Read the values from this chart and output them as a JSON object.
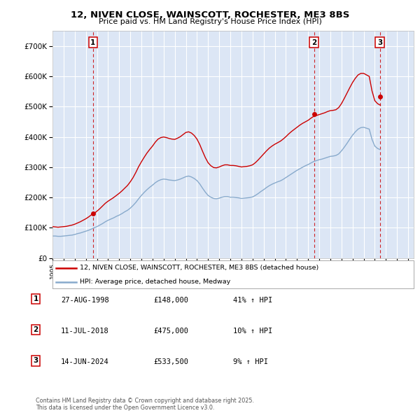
{
  "title": "12, NIVEN CLOSE, WAINSCOTT, ROCHESTER, ME3 8BS",
  "subtitle": "Price paid vs. HM Land Registry's House Price Index (HPI)",
  "background_color": "#ffffff",
  "plot_bg_color": "#dce6f5",
  "grid_color": "#ffffff",
  "sale_prices": [
    148000,
    475000,
    533500
  ],
  "sale_labels": [
    "1",
    "2",
    "3"
  ],
  "sale_date_years": [
    1998.647,
    2018.528,
    2024.456
  ],
  "sale_label_details": [
    {
      "num": "1",
      "date": "27-AUG-1998",
      "price": "£148,000",
      "hpi": "41% ↑ HPI"
    },
    {
      "num": "2",
      "date": "11-JUL-2018",
      "price": "£475,000",
      "hpi": "10% ↑ HPI"
    },
    {
      "num": "3",
      "date": "14-JUN-2024",
      "price": "£533,500",
      "hpi": "9% ↑ HPI"
    }
  ],
  "legend_labels": [
    "12, NIVEN CLOSE, WAINSCOTT, ROCHESTER, ME3 8BS (detached house)",
    "HPI: Average price, detached house, Medway"
  ],
  "line_color_red": "#cc0000",
  "line_color_blue": "#88aacc",
  "vline_color": "#cc0000",
  "footer": "Contains HM Land Registry data © Crown copyright and database right 2025.\nThis data is licensed under the Open Government Licence v3.0.",
  "ylim": [
    0,
    750000
  ],
  "yticks": [
    0,
    100000,
    200000,
    300000,
    400000,
    500000,
    600000,
    700000
  ],
  "ytick_labels": [
    "£0",
    "£100K",
    "£200K",
    "£300K",
    "£400K",
    "£500K",
    "£600K",
    "£700K"
  ],
  "xlim_start": 1995.0,
  "xlim_end": 2027.5,
  "hpi_red_data": {
    "years": [
      1995.0,
      1995.25,
      1995.5,
      1995.75,
      1996.0,
      1996.25,
      1996.5,
      1996.75,
      1997.0,
      1997.25,
      1997.5,
      1997.75,
      1998.0,
      1998.25,
      1998.5,
      1998.75,
      1999.0,
      1999.25,
      1999.5,
      1999.75,
      2000.0,
      2000.25,
      2000.5,
      2000.75,
      2001.0,
      2001.25,
      2001.5,
      2001.75,
      2002.0,
      2002.25,
      2002.5,
      2002.75,
      2003.0,
      2003.25,
      2003.5,
      2003.75,
      2004.0,
      2004.25,
      2004.5,
      2004.75,
      2005.0,
      2005.25,
      2005.5,
      2005.75,
      2006.0,
      2006.25,
      2006.5,
      2006.75,
      2007.0,
      2007.25,
      2007.5,
      2007.75,
      2008.0,
      2008.25,
      2008.5,
      2008.75,
      2009.0,
      2009.25,
      2009.5,
      2009.75,
      2010.0,
      2010.25,
      2010.5,
      2010.75,
      2011.0,
      2011.25,
      2011.5,
      2011.75,
      2012.0,
      2012.25,
      2012.5,
      2012.75,
      2013.0,
      2013.25,
      2013.5,
      2013.75,
      2014.0,
      2014.25,
      2014.5,
      2014.75,
      2015.0,
      2015.25,
      2015.5,
      2015.75,
      2016.0,
      2016.25,
      2016.5,
      2016.75,
      2017.0,
      2017.25,
      2017.5,
      2017.75,
      2018.0,
      2018.25,
      2018.5,
      2018.75,
      2019.0,
      2019.25,
      2019.5,
      2019.75,
      2020.0,
      2020.25,
      2020.5,
      2020.75,
      2021.0,
      2021.25,
      2021.5,
      2021.75,
      2022.0,
      2022.25,
      2022.5,
      2022.75,
      2023.0,
      2023.25,
      2023.5,
      2023.75,
      2024.0,
      2024.25,
      2024.5
    ],
    "values": [
      104000,
      103000,
      102000,
      103000,
      104000,
      105000,
      107000,
      109000,
      112000,
      116000,
      120000,
      125000,
      130000,
      136000,
      143000,
      148000,
      155000,
      163000,
      172000,
      181000,
      188000,
      194000,
      200000,
      207000,
      214000,
      222000,
      231000,
      240000,
      252000,
      266000,
      283000,
      302000,
      318000,
      333000,
      347000,
      359000,
      370000,
      383000,
      393000,
      398000,
      400000,
      398000,
      395000,
      393000,
      392000,
      396000,
      401000,
      408000,
      415000,
      417000,
      413000,
      405000,
      393000,
      375000,
      353000,
      332000,
      315000,
      305000,
      299000,
      298000,
      301000,
      305000,
      308000,
      308000,
      306000,
      306000,
      305000,
      303000,
      301000,
      302000,
      303000,
      305000,
      308000,
      315000,
      324000,
      334000,
      344000,
      354000,
      363000,
      370000,
      376000,
      381000,
      386000,
      393000,
      401000,
      410000,
      418000,
      425000,
      432000,
      439000,
      445000,
      450000,
      455000,
      462000,
      468000,
      471000,
      474000,
      477000,
      480000,
      484000,
      487000,
      488000,
      490000,
      497000,
      510000,
      527000,
      545000,
      563000,
      580000,
      594000,
      605000,
      610000,
      610000,
      605000,
      600000,
      552000,
      520000,
      510000,
      505000
    ]
  },
  "hpi_blue_data": {
    "years": [
      1995.0,
      1995.25,
      1995.5,
      1995.75,
      1996.0,
      1996.25,
      1996.5,
      1996.75,
      1997.0,
      1997.25,
      1997.5,
      1997.75,
      1998.0,
      1998.25,
      1998.5,
      1998.75,
      1999.0,
      1999.25,
      1999.5,
      1999.75,
      2000.0,
      2000.25,
      2000.5,
      2000.75,
      2001.0,
      2001.25,
      2001.5,
      2001.75,
      2002.0,
      2002.25,
      2002.5,
      2002.75,
      2003.0,
      2003.25,
      2003.5,
      2003.75,
      2004.0,
      2004.25,
      2004.5,
      2004.75,
      2005.0,
      2005.25,
      2005.5,
      2005.75,
      2006.0,
      2006.25,
      2006.5,
      2006.75,
      2007.0,
      2007.25,
      2007.5,
      2007.75,
      2008.0,
      2008.25,
      2008.5,
      2008.75,
      2009.0,
      2009.25,
      2009.5,
      2009.75,
      2010.0,
      2010.25,
      2010.5,
      2010.75,
      2011.0,
      2011.25,
      2011.5,
      2011.75,
      2012.0,
      2012.25,
      2012.5,
      2012.75,
      2013.0,
      2013.25,
      2013.5,
      2013.75,
      2014.0,
      2014.25,
      2014.5,
      2014.75,
      2015.0,
      2015.25,
      2015.5,
      2015.75,
      2016.0,
      2016.25,
      2016.5,
      2016.75,
      2017.0,
      2017.25,
      2017.5,
      2017.75,
      2018.0,
      2018.25,
      2018.5,
      2018.75,
      2019.0,
      2019.25,
      2019.5,
      2019.75,
      2020.0,
      2020.25,
      2020.5,
      2020.75,
      2021.0,
      2021.25,
      2021.5,
      2021.75,
      2022.0,
      2022.25,
      2022.5,
      2022.75,
      2023.0,
      2023.25,
      2023.5,
      2023.75,
      2024.0,
      2024.25,
      2024.5
    ],
    "values": [
      73000,
      73000,
      72000,
      72000,
      73000,
      74000,
      75000,
      76000,
      78000,
      81000,
      83000,
      86000,
      89000,
      92000,
      96000,
      100000,
      104000,
      109000,
      114000,
      120000,
      125000,
      129000,
      133000,
      138000,
      142000,
      147000,
      153000,
      158000,
      165000,
      174000,
      184000,
      196000,
      207000,
      217000,
      226000,
      234000,
      241000,
      249000,
      255000,
      259000,
      261000,
      260000,
      258000,
      257000,
      256000,
      258000,
      261000,
      265000,
      269000,
      271000,
      268000,
      263000,
      256000,
      245000,
      231000,
      218000,
      207000,
      201000,
      197000,
      196000,
      198000,
      201000,
      203000,
      203000,
      201000,
      201000,
      200000,
      199000,
      197000,
      198000,
      199000,
      200000,
      202000,
      207000,
      213000,
      220000,
      226000,
      233000,
      239000,
      244000,
      248000,
      252000,
      255000,
      260000,
      266000,
      272000,
      278000,
      284000,
      290000,
      295000,
      300000,
      305000,
      309000,
      314000,
      319000,
      322000,
      325000,
      327000,
      330000,
      333000,
      336000,
      337000,
      339000,
      344000,
      354000,
      366000,
      379000,
      393000,
      406000,
      417000,
      426000,
      431000,
      432000,
      429000,
      426000,
      392000,
      370000,
      362000,
      358000
    ]
  }
}
